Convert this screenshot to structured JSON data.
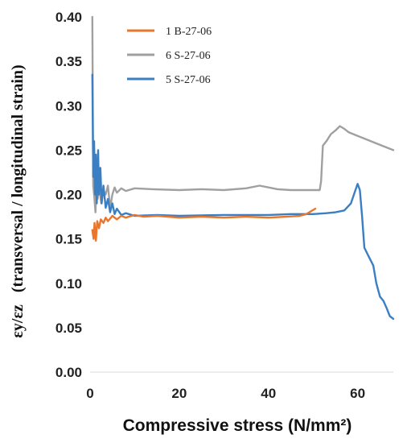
{
  "chart_data": {
    "type": "line",
    "title": "",
    "xlabel": "Compressive stress (N/mm²)",
    "ylabel_prefix": "εy/εz",
    "ylabel_rest": "(transversal / longitudinal strain)",
    "xlim": [
      0,
      68
    ],
    "ylim": [
      0,
      0.4
    ],
    "xticks": [
      0,
      20,
      40,
      60
    ],
    "xtick_labels": [
      "0",
      "20",
      "40",
      "60"
    ],
    "yticks": [
      0,
      0.05,
      0.1,
      0.15,
      0.2,
      0.25,
      0.3,
      0.35,
      0.4
    ],
    "ytick_labels": [
      "0.00",
      "0.05",
      "0.10",
      "0.15",
      "0.20",
      "0.25",
      "0.30",
      "0.35",
      "0.40"
    ],
    "grid": false,
    "legend_position": "top-center",
    "series": [
      {
        "name": "1 B-27-06",
        "color": "#E8772E",
        "points": [
          [
            0.5,
            0.16
          ],
          [
            0.8,
            0.15
          ],
          [
            1.0,
            0.168
          ],
          [
            1.3,
            0.148
          ],
          [
            1.6,
            0.17
          ],
          [
            2.0,
            0.162
          ],
          [
            2.4,
            0.172
          ],
          [
            3.0,
            0.168
          ],
          [
            3.5,
            0.174
          ],
          [
            4.0,
            0.17
          ],
          [
            5.0,
            0.176
          ],
          [
            6.0,
            0.172
          ],
          [
            7.0,
            0.176
          ],
          [
            8.0,
            0.174
          ],
          [
            10.0,
            0.177
          ],
          [
            12.0,
            0.175
          ],
          [
            15.0,
            0.176
          ],
          [
            20.0,
            0.174
          ],
          [
            25.0,
            0.175
          ],
          [
            30.0,
            0.174
          ],
          [
            35.0,
            0.175
          ],
          [
            40.0,
            0.174
          ],
          [
            44.0,
            0.175
          ],
          [
            47.0,
            0.176
          ],
          [
            48.5,
            0.178
          ],
          [
            49.5,
            0.181
          ],
          [
            50.5,
            0.184
          ]
        ]
      },
      {
        "name": "6 S-27-06",
        "color": "#A0A0A0",
        "points": [
          [
            0.5,
            0.42
          ],
          [
            0.7,
            0.21
          ],
          [
            0.9,
            0.2
          ],
          [
            1.2,
            0.18
          ],
          [
            1.4,
            0.207
          ],
          [
            1.7,
            0.195
          ],
          [
            2.0,
            0.21
          ],
          [
            2.5,
            0.19
          ],
          [
            3.0,
            0.205
          ],
          [
            3.5,
            0.2
          ],
          [
            4.0,
            0.21
          ],
          [
            4.5,
            0.185
          ],
          [
            5.0,
            0.2
          ],
          [
            5.5,
            0.208
          ],
          [
            6.0,
            0.202
          ],
          [
            7.0,
            0.207
          ],
          [
            8.0,
            0.204
          ],
          [
            10.0,
            0.207
          ],
          [
            14.0,
            0.206
          ],
          [
            20.0,
            0.205
          ],
          [
            25.0,
            0.206
          ],
          [
            30.0,
            0.205
          ],
          [
            35.0,
            0.207
          ],
          [
            38.0,
            0.21
          ],
          [
            40.0,
            0.208
          ],
          [
            42.0,
            0.206
          ],
          [
            45.0,
            0.205
          ],
          [
            49.0,
            0.205
          ],
          [
            51.5,
            0.205
          ],
          [
            51.8,
            0.215
          ],
          [
            52.2,
            0.255
          ],
          [
            53.0,
            0.26
          ],
          [
            54.0,
            0.268
          ],
          [
            55.0,
            0.272
          ],
          [
            56.0,
            0.277
          ],
          [
            57.0,
            0.274
          ],
          [
            58.0,
            0.27
          ],
          [
            60.0,
            0.266
          ],
          [
            62.0,
            0.262
          ],
          [
            64.0,
            0.258
          ],
          [
            66.0,
            0.254
          ],
          [
            68.0,
            0.25
          ]
        ]
      },
      {
        "name": "5 S-27-06",
        "color": "#3A7FC4",
        "points": [
          [
            0.5,
            0.335
          ],
          [
            0.7,
            0.22
          ],
          [
            0.9,
            0.26
          ],
          [
            1.1,
            0.2
          ],
          [
            1.3,
            0.245
          ],
          [
            1.5,
            0.19
          ],
          [
            1.8,
            0.25
          ],
          [
            2.0,
            0.2
          ],
          [
            2.3,
            0.23
          ],
          [
            2.6,
            0.19
          ],
          [
            3.0,
            0.21
          ],
          [
            3.5,
            0.185
          ],
          [
            4.0,
            0.195
          ],
          [
            4.5,
            0.18
          ],
          [
            5.0,
            0.19
          ],
          [
            5.5,
            0.178
          ],
          [
            6.0,
            0.184
          ],
          [
            7.0,
            0.177
          ],
          [
            8.0,
            0.179
          ],
          [
            10.0,
            0.176
          ],
          [
            15.0,
            0.177
          ],
          [
            20.0,
            0.176
          ],
          [
            30.0,
            0.177
          ],
          [
            40.0,
            0.177
          ],
          [
            45.0,
            0.178
          ],
          [
            50.0,
            0.178
          ],
          [
            53.0,
            0.179
          ],
          [
            55.0,
            0.18
          ],
          [
            57.0,
            0.182
          ],
          [
            58.5,
            0.19
          ],
          [
            59.5,
            0.205
          ],
          [
            60.0,
            0.212
          ],
          [
            60.5,
            0.205
          ],
          [
            61.0,
            0.175
          ],
          [
            61.5,
            0.14
          ],
          [
            62.5,
            0.13
          ],
          [
            63.5,
            0.12
          ],
          [
            64.2,
            0.1
          ],
          [
            65.0,
            0.085
          ],
          [
            65.8,
            0.08
          ],
          [
            66.5,
            0.072
          ],
          [
            67.2,
            0.063
          ],
          [
            68.0,
            0.06
          ]
        ]
      }
    ]
  }
}
